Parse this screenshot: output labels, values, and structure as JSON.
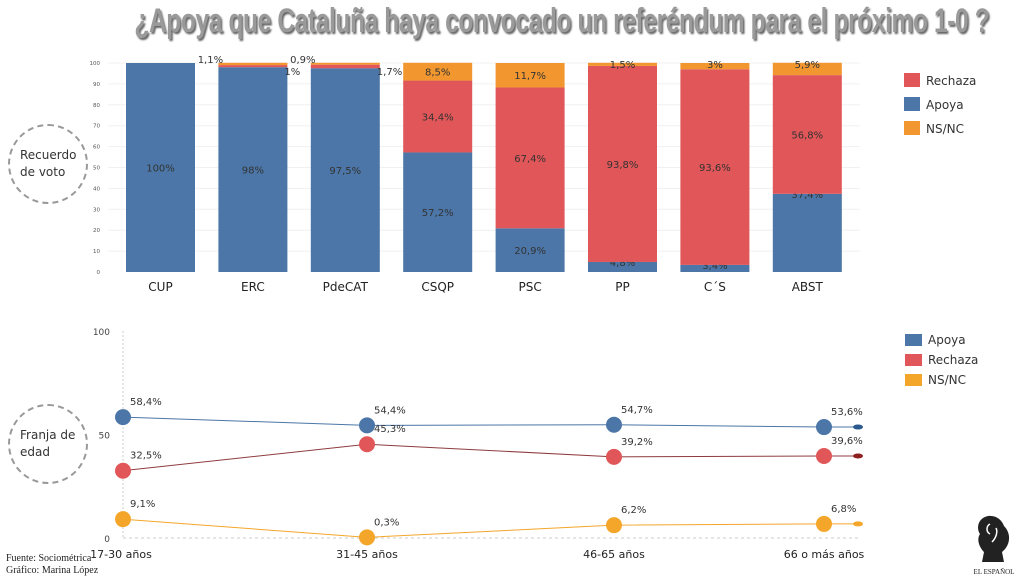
{
  "title": "¿Apoya que Cataluña haya convocado un referéndum para el próximo 1-0 ?",
  "colors": {
    "apoya": "#4b76a7",
    "rechaza": "#e15658",
    "nsnc": "#f2972f",
    "line_nsnc": "#f4a62a"
  },
  "chart_data": [
    {
      "type": "bar",
      "stacked": true,
      "side_label": "Recuerdo de voto",
      "ylim": [
        0,
        100
      ],
      "yticks": [
        0,
        10,
        20,
        30,
        40,
        50,
        60,
        70,
        80,
        90,
        100
      ],
      "categories": [
        "CUP",
        "ERC",
        "PdeCAT",
        "CSQP",
        "PSC",
        "PP",
        "C´S",
        "ABST"
      ],
      "series": [
        {
          "name": "Apoya",
          "values": [
            100,
            98,
            97.5,
            57.2,
            20.9,
            4.8,
            3.4,
            37.4
          ],
          "labels": [
            "100%",
            "98%",
            "97,5%",
            "57,2%",
            "20,9%",
            "4,8%",
            "3,4%",
            "37,4%"
          ]
        },
        {
          "name": "Rechaza",
          "values": [
            0,
            1,
            1.7,
            34.4,
            67.4,
            93.8,
            93.6,
            56.8
          ],
          "labels": [
            "",
            "1%",
            "1,7%",
            "34,4%",
            "67,4%",
            "93,8%",
            "93,6%",
            "56,8%"
          ]
        },
        {
          "name": "NS/NC",
          "values": [
            0,
            1.1,
            0.9,
            8.5,
            11.7,
            1.5,
            3,
            5.9
          ],
          "labels": [
            "",
            "1,1%",
            "0,9%",
            "8,5%",
            "11,7%",
            "1,5%",
            "3%",
            "5,9%"
          ]
        }
      ],
      "legend": [
        "Rechaza",
        "Apoya",
        "NS/NC"
      ],
      "legend_position": "right"
    },
    {
      "type": "line",
      "side_label": "Franja de edad",
      "ylim": [
        0,
        100
      ],
      "yticks": [
        0,
        50,
        100
      ],
      "categories": [
        "17-30 años",
        "31-45 años",
        "46-65 años",
        "66 o  más años"
      ],
      "series": [
        {
          "name": "Apoya",
          "values": [
            58.4,
            54.4,
            54.7,
            53.6
          ],
          "labels": [
            "58,4%",
            "54,4%",
            "54,7%",
            "53,6%"
          ]
        },
        {
          "name": "Rechaza",
          "values": [
            32.5,
            45.3,
            39.2,
            39.6
          ],
          "labels": [
            "32,5%",
            "45,3%",
            "39,2%",
            "39,6%"
          ]
        },
        {
          "name": "NS/NC",
          "values": [
            9.1,
            0.3,
            6.2,
            6.8
          ],
          "labels": [
            "9,1%",
            "0,3%",
            "6,2%",
            "6,8%"
          ]
        }
      ],
      "legend": [
        "Apoya",
        "Rechaza",
        "NS/NC"
      ],
      "legend_position": "right"
    }
  ],
  "source": "Fuente: Sociométrica",
  "credit": "Gráfico: Marina López",
  "logo": "EL ESPAÑOL"
}
